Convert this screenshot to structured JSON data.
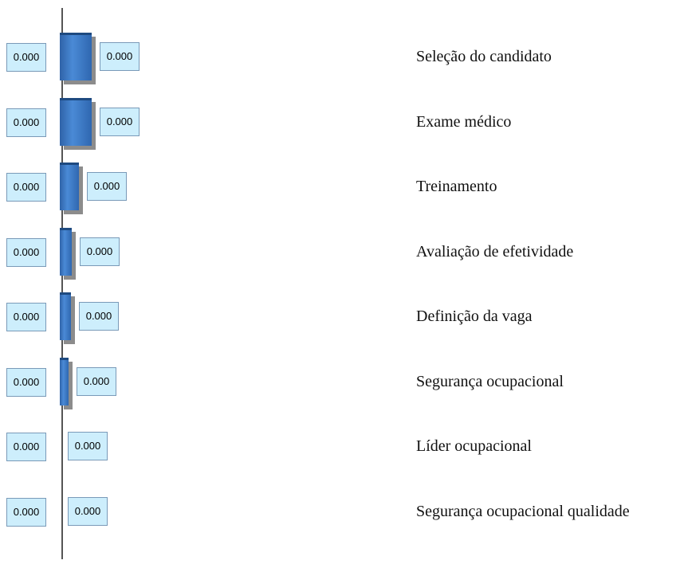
{
  "rows": [
    {
      "label": "Seleção do candidato",
      "left_value": "0.000",
      "right_value": "0.000"
    },
    {
      "label": "Exame médico",
      "left_value": "0.000",
      "right_value": "0.000"
    },
    {
      "label": "Treinamento",
      "left_value": "0.000",
      "right_value": "0.000"
    },
    {
      "label": "Avaliação de efetividade",
      "left_value": "0.000",
      "right_value": "0.000"
    },
    {
      "label": "Definição da vaga",
      "left_value": "0.000",
      "right_value": "0.000"
    },
    {
      "label": "Segurança ocupacional",
      "left_value": "0.000",
      "right_value": "0.000"
    },
    {
      "label": "Líder ocupacional",
      "left_value": "0.000",
      "right_value": "0.000"
    },
    {
      "label": "Segurança ocupacional qualidade",
      "left_value": "0.000",
      "right_value": "0.000"
    }
  ]
}
